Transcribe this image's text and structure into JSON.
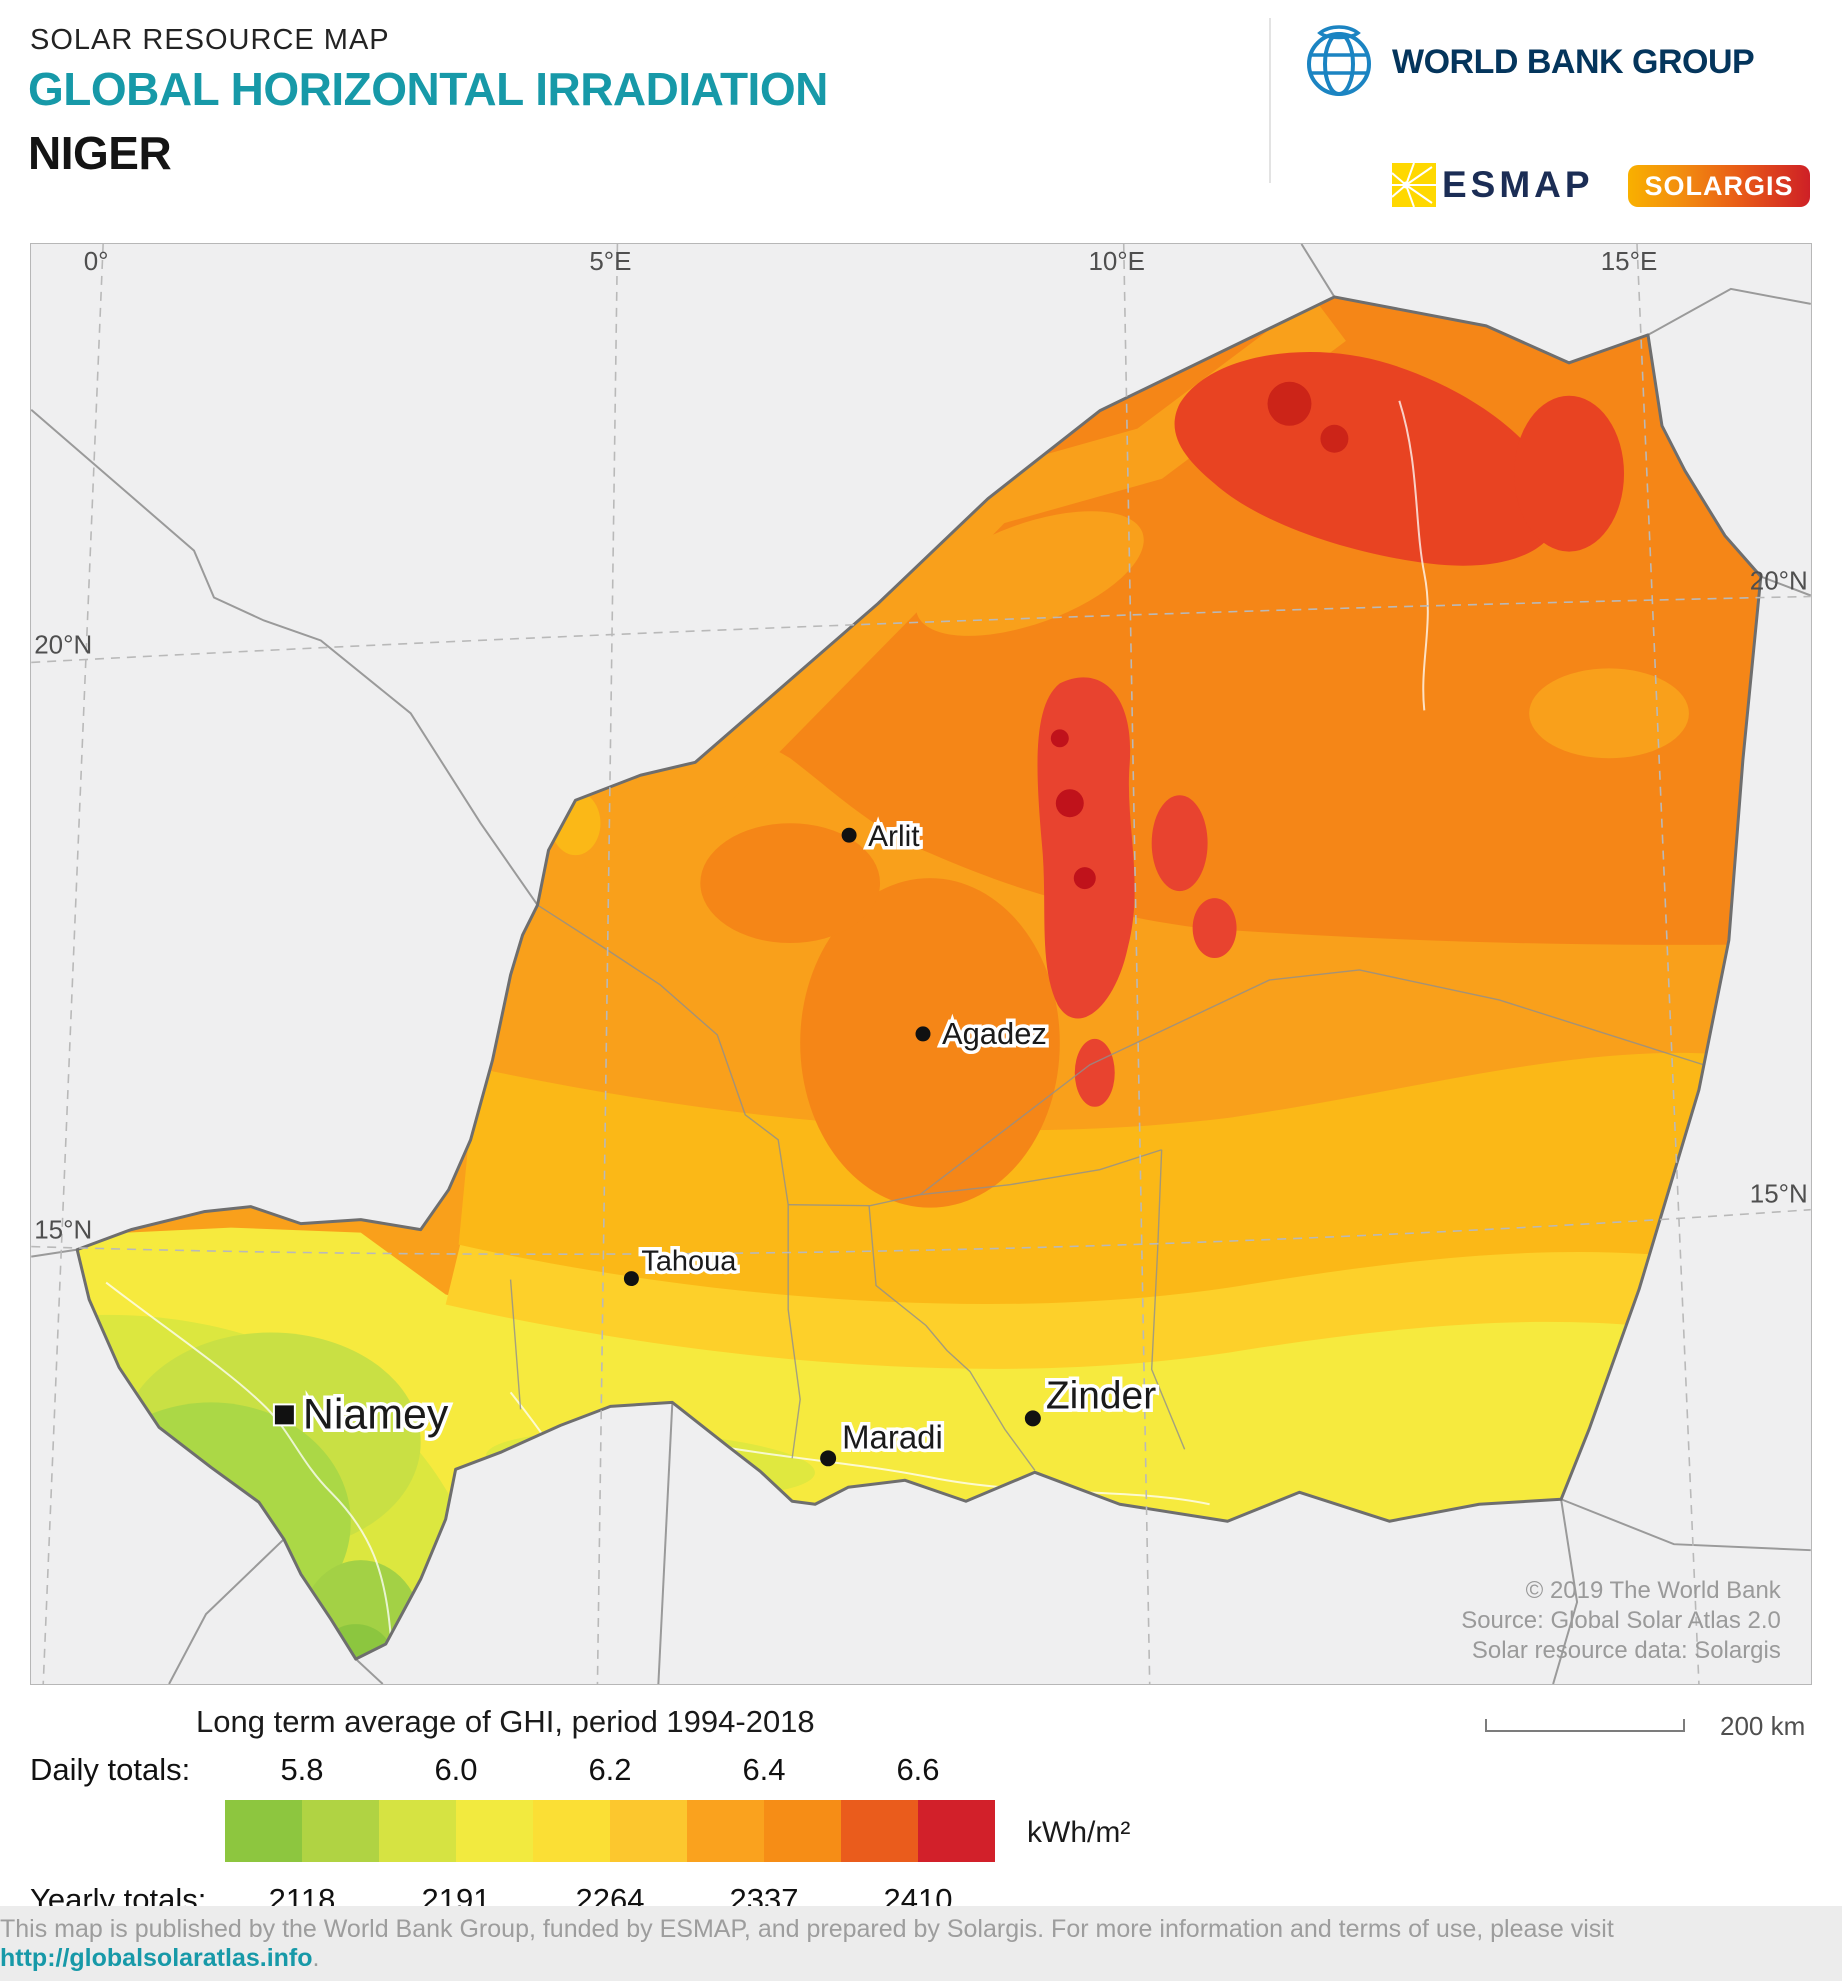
{
  "theme": {
    "accent": "#1799a8"
  },
  "header": {
    "eyebrow": "SOLAR RESOURCE MAP",
    "title": "GLOBAL HORIZONTAL IRRADIATION",
    "country": "NIGER"
  },
  "logos": {
    "world_bank": "WORLD BANK GROUP",
    "esmap": "ESMAP",
    "solargis": "SOLARGIS"
  },
  "map": {
    "graticule_top": [
      "0°",
      "5°E",
      "10°E",
      "15°E"
    ],
    "graticule_left": [
      "20°N",
      "15°N"
    ],
    "graticule_right": [
      "20°N",
      "15°N"
    ],
    "cities": [
      {
        "name": "Arlit"
      },
      {
        "name": "Agadez"
      },
      {
        "name": "Tahoua"
      },
      {
        "name": "Niamey"
      },
      {
        "name": "Maradi"
      },
      {
        "name": "Zinder"
      }
    ],
    "copyright": [
      "© 2019 The World Bank",
      "Source: Global Solar Atlas 2.0",
      "Solar resource data: Solargis"
    ]
  },
  "legend": {
    "title": "Long term average of GHI, period 1994-2018",
    "daily_label": "Daily totals:",
    "daily_values": [
      "5.8",
      "6.0",
      "6.2",
      "6.4",
      "6.6"
    ],
    "yearly_label": "Yearly totals:",
    "yearly_values": [
      "2118",
      "2191",
      "2264",
      "2337",
      "2410"
    ],
    "unit": "kWh/m²",
    "colors": [
      "#8dc63f",
      "#b0d343",
      "#d6e342",
      "#f2ea3f",
      "#fbdf35",
      "#fcc72e",
      "#faa21e",
      "#f68d16",
      "#ea5c1c",
      "#d2202a"
    ]
  },
  "scalebar": {
    "label": "200 km"
  },
  "footer": {
    "text_before": "This map is published by the World Bank Group, funded by ESMAP, and prepared by Solargis. For more information and terms of use, please visit ",
    "link": "http://globalsolaratlas.info",
    "suffix": "."
  }
}
